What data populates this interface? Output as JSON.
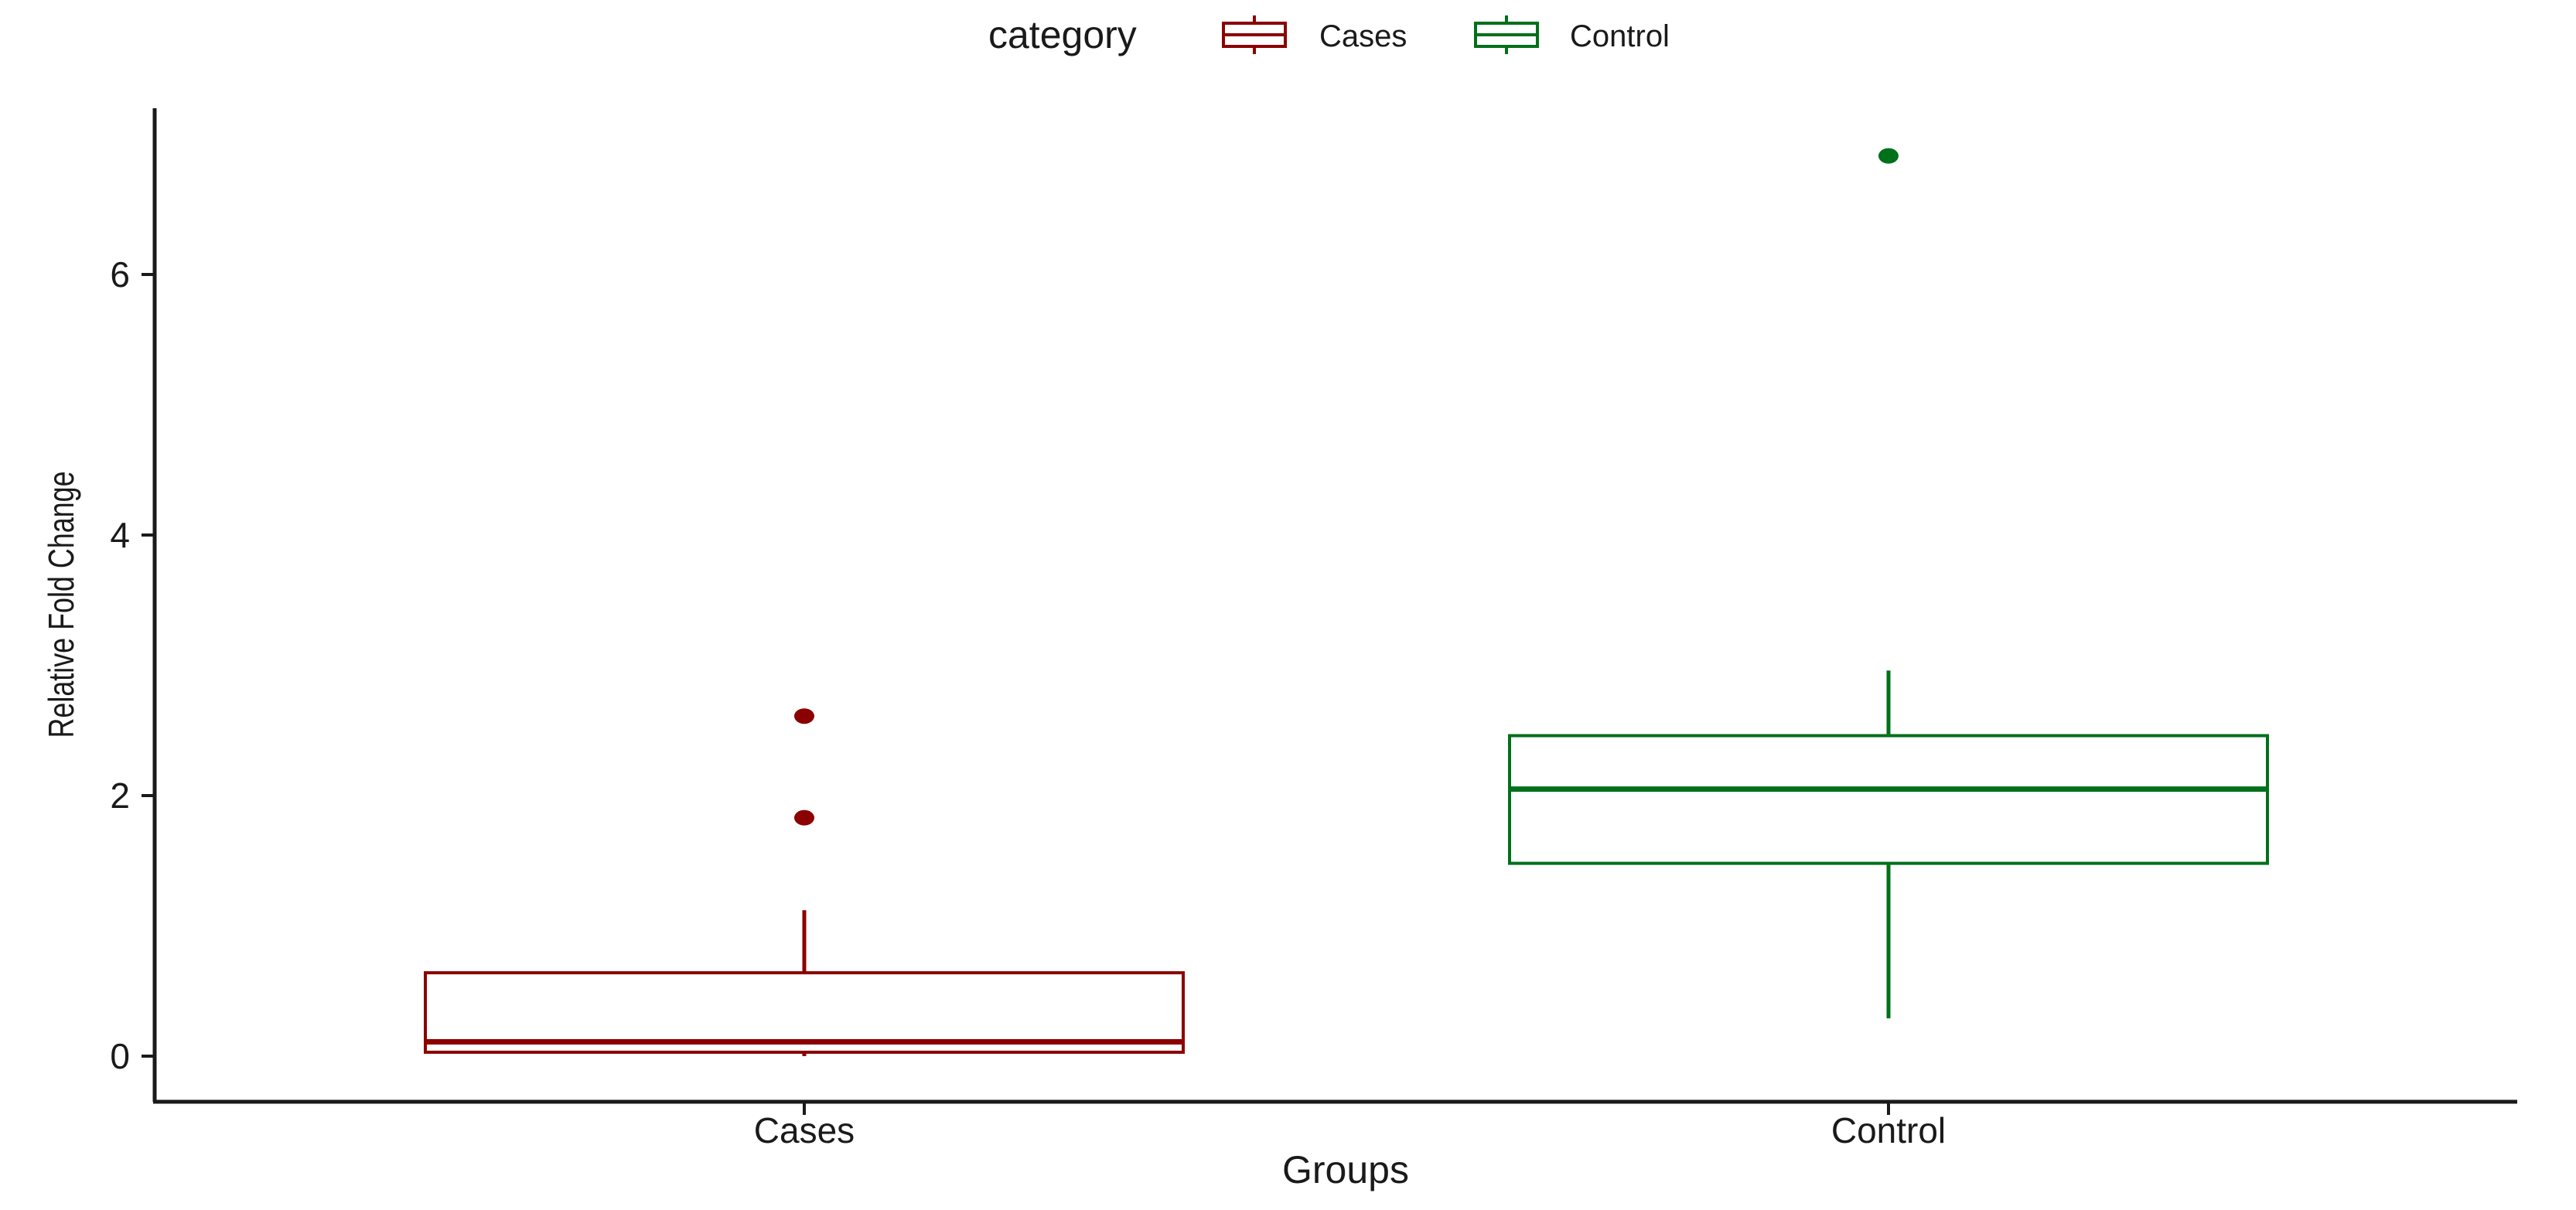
{
  "chart_data": {
    "type": "boxplot",
    "xlabel": "Groups",
    "ylabel": "Relative Fold Change",
    "ylim": [
      -0.3,
      7.3
    ],
    "yticks": [
      0,
      2,
      4,
      6
    ],
    "categories": [
      "Cases",
      "Control"
    ],
    "legend": {
      "title": "category",
      "placement": "top",
      "entries": [
        "Cases",
        "Control"
      ]
    },
    "grid": false,
    "series": [
      {
        "name": "Cases",
        "color": "#8b0000",
        "min": 0.0,
        "q1": 0.03,
        "median": 0.11,
        "q3": 0.64,
        "max": 1.12,
        "outliers": [
          1.83,
          2.61
        ]
      },
      {
        "name": "Control",
        "color": "#00701a",
        "min": 0.29,
        "q1": 1.48,
        "median": 2.05,
        "q3": 2.46,
        "max": 2.96,
        "outliers": [
          6.91
        ]
      }
    ]
  }
}
